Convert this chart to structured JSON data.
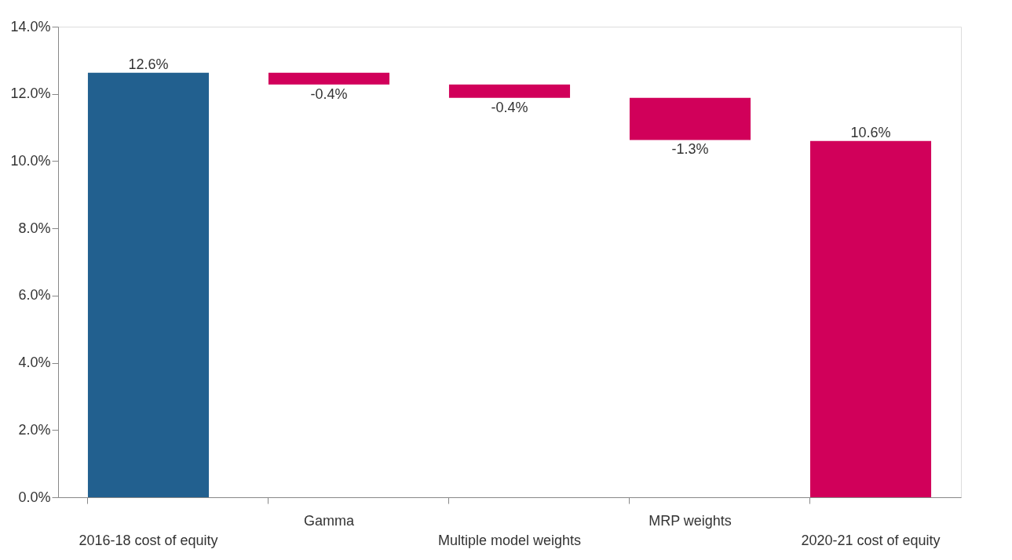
{
  "chart_data": {
    "type": "bar",
    "categories": [
      "2016-18 cost of equity",
      "Gamma",
      "Multiple model weights",
      "MRP weights",
      "2020-21 cost of equity"
    ],
    "values": [
      12.63,
      -0.35,
      -0.4,
      -1.25,
      10.6
    ],
    "base": [
      0,
      12.63,
      12.28,
      11.88,
      0
    ],
    "colors": [
      "#22608f",
      "#d1005a",
      "#d1005a",
      "#d1005a",
      "#d1005a"
    ],
    "value_labels": [
      "12.6%",
      "-0.4%",
      "-0.4%",
      "-1.3%",
      "10.6%"
    ],
    "ylim": [
      0,
      14
    ],
    "yticks": [
      {
        "value": 0,
        "label": "0.0%"
      },
      {
        "value": 2,
        "label": "2.0%"
      },
      {
        "value": 4,
        "label": "4.0%"
      },
      {
        "value": 6,
        "label": "6.0%"
      },
      {
        "value": 8,
        "label": "8.0%"
      },
      {
        "value": 10,
        "label": "10.0%"
      },
      {
        "value": 12,
        "label": "12.0%"
      },
      {
        "value": 14,
        "label": "14.0%"
      }
    ],
    "grid": false
  }
}
